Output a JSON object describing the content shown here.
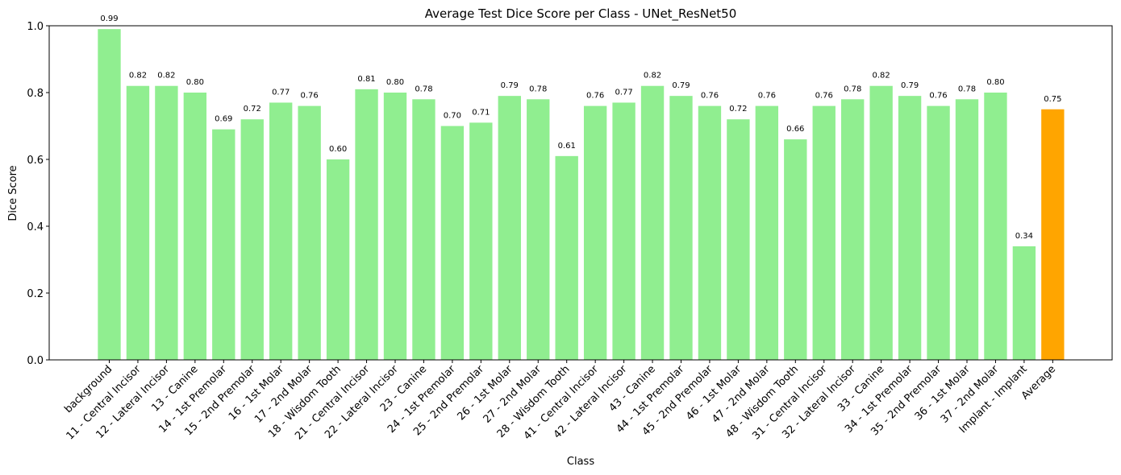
{
  "chart_data": {
    "type": "bar",
    "title": "Average Test Dice Score per Class - UNet_ResNet50",
    "x_label": "Class",
    "y_label": "Dice Score",
    "categories": [
      "background",
      "11 - Central Incisor",
      "12 - Lateral Incisor",
      "13 - Canine",
      "14 - 1st Premolar",
      "15 - 2nd Premolar",
      "16 - 1st Molar",
      "17 - 2nd Molar",
      "18 - Wisdom Tooth",
      "21 - Central Incisor",
      "22 - Lateral Incisor",
      "23 - Canine",
      "24 - 1st Premolar",
      "25 - 2nd Premolar",
      "26 - 1st Molar",
      "27 - 2nd Molar",
      "28 - Wisdom Tooth",
      "41 - Central Incisor",
      "42 - Lateral Incisor",
      "43 - Canine",
      "44 - 1st Premolar",
      "45 - 2nd Premolar",
      "46 - 1st Molar",
      "47 - 2nd Molar",
      "48 - Wisdom Tooth",
      "31 - Central Incisor",
      "32 - Lateral Incisor",
      "33 - Canine",
      "34 - 1st Premolar",
      "35 - 2nd Premolar",
      "36 - 1st Molar",
      "37 - 2nd Molar",
      "Implant - Implant",
      "Average"
    ],
    "values": [
      0.99,
      0.82,
      0.82,
      0.8,
      0.69,
      0.72,
      0.77,
      0.76,
      0.6,
      0.81,
      0.8,
      0.78,
      0.7,
      0.71,
      0.79,
      0.78,
      0.61,
      0.76,
      0.77,
      0.82,
      0.79,
      0.76,
      0.72,
      0.76,
      0.66,
      0.76,
      0.78,
      0.82,
      0.79,
      0.76,
      0.78,
      0.8,
      0.34,
      0.75
    ],
    "value_labels": [
      "0.99",
      "0.82",
      "0.82",
      "0.80",
      "0.69",
      "0.72",
      "0.77",
      "0.76",
      "0.60",
      "0.81",
      "0.80",
      "0.78",
      "0.70",
      "0.71",
      "0.79",
      "0.78",
      "0.61",
      "0.76",
      "0.77",
      "0.82",
      "0.79",
      "0.76",
      "0.72",
      "0.76",
      "0.66",
      "0.76",
      "0.78",
      "0.82",
      "0.79",
      "0.76",
      "0.78",
      "0.80",
      "0.34",
      "0.75"
    ],
    "colors": [
      "#90ee90",
      "#90ee90",
      "#90ee90",
      "#90ee90",
      "#90ee90",
      "#90ee90",
      "#90ee90",
      "#90ee90",
      "#90ee90",
      "#90ee90",
      "#90ee90",
      "#90ee90",
      "#90ee90",
      "#90ee90",
      "#90ee90",
      "#90ee90",
      "#90ee90",
      "#90ee90",
      "#90ee90",
      "#90ee90",
      "#90ee90",
      "#90ee90",
      "#90ee90",
      "#90ee90",
      "#90ee90",
      "#90ee90",
      "#90ee90",
      "#90ee90",
      "#90ee90",
      "#90ee90",
      "#90ee90",
      "#90ee90",
      "#90ee90",
      "#ffa500"
    ],
    "ylim": [
      0,
      1
    ],
    "yticks": [
      {
        "value": 0,
        "label": "0.0"
      },
      {
        "value": 0.2,
        "label": "0.2"
      },
      {
        "value": 0.4,
        "label": "0.4"
      },
      {
        "value": 0.6,
        "label": "0.6"
      },
      {
        "value": 0.8,
        "label": "0.8"
      },
      {
        "value": 1,
        "label": "1.0"
      }
    ],
    "grid": false
  }
}
